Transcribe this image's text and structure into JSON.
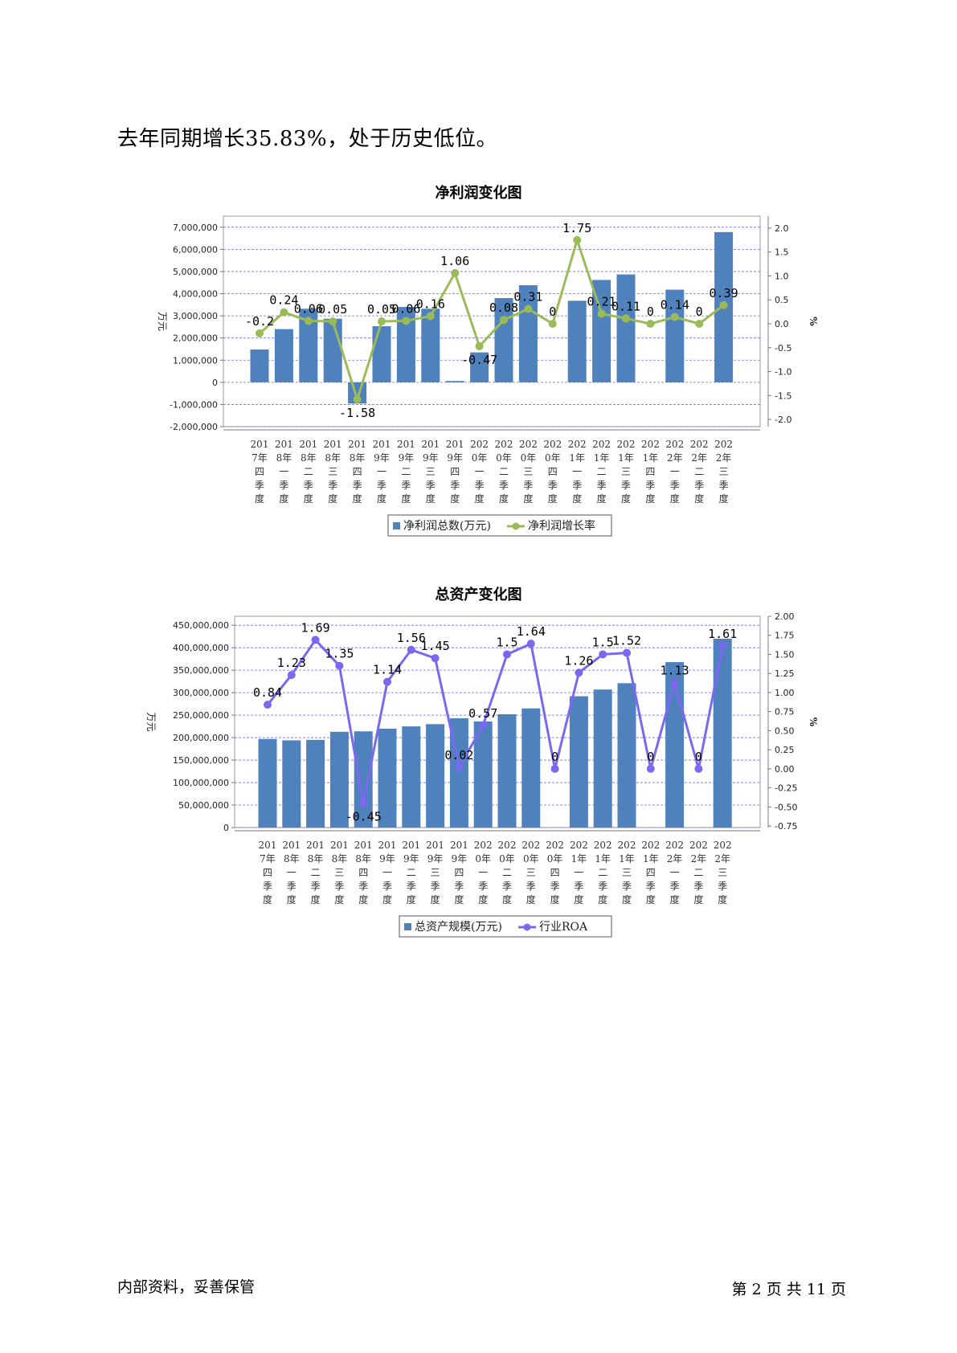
{
  "lead_text": "去年同期增长35.83%，处于历史低位。",
  "footer": {
    "left": "内部资料，妥善保管",
    "right": "第 2 页   共 11 页"
  },
  "chart_data": [
    {
      "type": "bar+line",
      "title": "净利润变化图",
      "categories": [
        "2017年四季度",
        "2018年一季度",
        "2018年二季度",
        "2018年三季度",
        "2018年四季度",
        "2019年一季度",
        "2019年二季度",
        "2019年三季度",
        "2019年四季度",
        "2020年一季度",
        "2020年二季度",
        "2020年三季度",
        "2020年四季度",
        "2021年一季度",
        "2021年二季度",
        "2021年三季度",
        "2021年四季度",
        "2022年一季度",
        "2022年二季度",
        "2022年三季度"
      ],
      "category_lines": [
        [
          "201",
          "7年",
          "四",
          "季",
          "度"
        ],
        [
          "201",
          "8年",
          "一",
          "季",
          "度"
        ],
        [
          "201",
          "8年",
          "二",
          "季",
          "度"
        ],
        [
          "201",
          "8年",
          "三",
          "季",
          "度"
        ],
        [
          "201",
          "8年",
          "四",
          "季",
          "度"
        ],
        [
          "201",
          "9年",
          "一",
          "季",
          "度"
        ],
        [
          "201",
          "9年",
          "二",
          "季",
          "度"
        ],
        [
          "201",
          "9年",
          "三",
          "季",
          "度"
        ],
        [
          "201",
          "9年",
          "四",
          "季",
          "度"
        ],
        [
          "202",
          "0年",
          "一",
          "季",
          "度"
        ],
        [
          "202",
          "0年",
          "二",
          "季",
          "度"
        ],
        [
          "202",
          "0年",
          "三",
          "季",
          "度"
        ],
        [
          "202",
          "0年",
          "四",
          "季",
          "度"
        ],
        [
          "202",
          "1年",
          "一",
          "季",
          "度"
        ],
        [
          "202",
          "1年",
          "二",
          "季",
          "度"
        ],
        [
          "202",
          "1年",
          "三",
          "季",
          "度"
        ],
        [
          "202",
          "1年",
          "四",
          "季",
          "度"
        ],
        [
          "202",
          "2年",
          "一",
          "季",
          "度"
        ],
        [
          "202",
          "2年",
          "二",
          "季",
          "度"
        ],
        [
          "202",
          "2年",
          "三",
          "季",
          "度"
        ]
      ],
      "ylabel": "万元",
      "y2label": "%",
      "ylim": [
        -2000000,
        7500000
      ],
      "yticks": [
        7000000,
        6000000,
        5000000,
        4000000,
        3000000,
        2000000,
        1000000,
        0,
        -1000000,
        -2000000
      ],
      "ytick_labels": [
        "7,000,000",
        "6,000,000",
        "5,000,000",
        "4,000,000",
        "3,000,000",
        "2,000,000",
        "1,000,000",
        "0",
        "-1,000,000",
        "-2,000,000"
      ],
      "y2lim": [
        -2.15,
        2.25
      ],
      "y2ticks": [
        2.0,
        1.5,
        1.0,
        0.5,
        0.0,
        -0.5,
        -1.0,
        -1.5,
        -2.0
      ],
      "y2tick_labels": [
        "2.0",
        "1.5",
        "1.0",
        "0.5",
        "0.0",
        "-0.5",
        "-1.0",
        "-1.5",
        "-2.0"
      ],
      "grid": true,
      "legend_position": "bottom",
      "series": [
        {
          "name": "净利润总数(万元)",
          "kind": "bar",
          "axis": "left",
          "color": "#4f81bd",
          "values": [
            1480000,
            2400000,
            3320000,
            2870000,
            -960000,
            2530000,
            3400000,
            3320000,
            60000,
            1350000,
            3800000,
            4380000,
            null,
            3680000,
            4620000,
            4870000,
            null,
            4180000,
            null,
            6780000
          ]
        },
        {
          "name": "净利润增长率",
          "kind": "line",
          "axis": "right",
          "color": "#9bbb59",
          "values": [
            -0.2,
            0.24,
            0.06,
            0.05,
            -1.58,
            0.05,
            0.06,
            0.16,
            1.06,
            -0.47,
            0.08,
            0.31,
            0,
            1.75,
            0.21,
            0.11,
            0,
            0.14,
            0,
            0.39
          ],
          "labels": [
            "-0.2",
            "0.24",
            "0.06",
            "0.05",
            "-1.58",
            "0.05",
            "0.06",
            "0.16",
            "1.06",
            "-0.47",
            "0.08",
            "0.31",
            "0",
            "1.75",
            "0.21",
            "0.11",
            "0",
            "0.14",
            "0",
            "0.39"
          ]
        }
      ]
    },
    {
      "type": "bar+line",
      "title": "总资产变化图",
      "categories": [
        "2017年四季度",
        "2018年一季度",
        "2018年二季度",
        "2018年三季度",
        "2018年四季度",
        "2019年一季度",
        "2019年二季度",
        "2019年三季度",
        "2019年四季度",
        "2020年一季度",
        "2020年二季度",
        "2020年三季度",
        "2020年四季度",
        "2021年一季度",
        "2021年二季度",
        "2021年三季度",
        "2021年四季度",
        "2022年一季度",
        "2022年二季度",
        "2022年三季度"
      ],
      "category_lines": [
        [
          "201",
          "7年",
          "四",
          "季",
          "度"
        ],
        [
          "201",
          "8年",
          "一",
          "季",
          "度"
        ],
        [
          "201",
          "8年",
          "二",
          "季",
          "度"
        ],
        [
          "201",
          "8年",
          "三",
          "季",
          "度"
        ],
        [
          "201",
          "8年",
          "四",
          "季",
          "度"
        ],
        [
          "201",
          "9年",
          "一",
          "季",
          "度"
        ],
        [
          "201",
          "9年",
          "二",
          "季",
          "度"
        ],
        [
          "201",
          "9年",
          "三",
          "季",
          "度"
        ],
        [
          "201",
          "9年",
          "四",
          "季",
          "度"
        ],
        [
          "202",
          "0年",
          "一",
          "季",
          "度"
        ],
        [
          "202",
          "0年",
          "二",
          "季",
          "度"
        ],
        [
          "202",
          "0年",
          "三",
          "季",
          "度"
        ],
        [
          "202",
          "0年",
          "四",
          "季",
          "度"
        ],
        [
          "202",
          "1年",
          "一",
          "季",
          "度"
        ],
        [
          "202",
          "1年",
          "二",
          "季",
          "度"
        ],
        [
          "202",
          "1年",
          "三",
          "季",
          "度"
        ],
        [
          "202",
          "1年",
          "四",
          "季",
          "度"
        ],
        [
          "202",
          "2年",
          "一",
          "季",
          "度"
        ],
        [
          "202",
          "2年",
          "二",
          "季",
          "度"
        ],
        [
          "202",
          "2年",
          "三",
          "季",
          "度"
        ]
      ],
      "ylabel": "万元",
      "y2label": "%",
      "ylim": [
        0,
        470000000
      ],
      "yticks": [
        450000000,
        400000000,
        350000000,
        300000000,
        250000000,
        200000000,
        150000000,
        100000000,
        50000000,
        0
      ],
      "ytick_labels": [
        "450,000,000",
        "400,000,000",
        "350,000,000",
        "300,000,000",
        "250,000,000",
        "200,000,000",
        "150,000,000",
        "100,000,000",
        "50,000,000",
        "0"
      ],
      "y2lim": [
        -0.77,
        2.0
      ],
      "y2ticks": [
        2.0,
        1.75,
        1.5,
        1.25,
        1.0,
        0.75,
        0.5,
        0.25,
        0.0,
        -0.25,
        -0.5,
        -0.75
      ],
      "y2tick_labels": [
        "2.00",
        "1.75",
        "1.50",
        "1.25",
        "1.00",
        "0.75",
        "0.50",
        "0.25",
        "0.00",
        "-0.25",
        "-0.50",
        "-0.75"
      ],
      "grid": true,
      "legend_position": "bottom",
      "series": [
        {
          "name": "总资产规模(万元)",
          "kind": "bar",
          "axis": "left",
          "color": "#4f81bd",
          "values": [
            197000000,
            194000000,
            195000000,
            213000000,
            214000000,
            220000000,
            225000000,
            230000000,
            243000000,
            236000000,
            252000000,
            265000000,
            null,
            292000000,
            307000000,
            321000000,
            null,
            368000000,
            null,
            420000000
          ]
        },
        {
          "name": "行业ROA",
          "kind": "line",
          "axis": "right",
          "color": "#7b68ee",
          "values": [
            0.84,
            1.23,
            1.69,
            1.35,
            -0.45,
            1.14,
            1.56,
            1.45,
            0.02,
            0.57,
            1.5,
            1.64,
            0,
            1.26,
            1.5,
            1.52,
            0,
            1.13,
            0,
            1.61
          ],
          "labels": [
            "0.84",
            "1.23",
            "1.69",
            "1.35",
            "-0.45",
            "1.14",
            "1.56",
            "1.45",
            "0.02",
            "0.57",
            "1.5",
            "1.64",
            "0",
            "1.26",
            "1.5",
            "1.52",
            "0",
            "1.13",
            "0",
            "1.61"
          ]
        }
      ]
    }
  ]
}
